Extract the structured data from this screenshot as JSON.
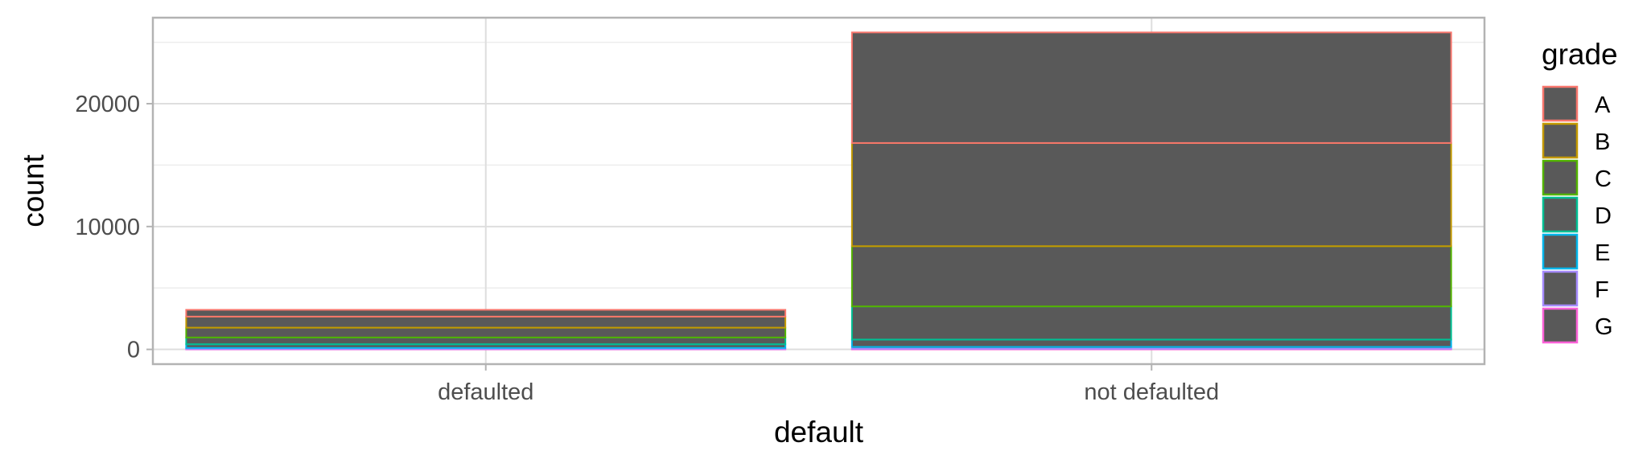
{
  "chart_data": {
    "type": "bar",
    "stacked": true,
    "categories": [
      "defaulted",
      "not defaulted"
    ],
    "xlabel": "default",
    "ylabel": "count",
    "ylim": [
      -1200,
      27000
    ],
    "yticks": [
      0,
      10000,
      20000
    ],
    "ytick_labels": [
      "0",
      "10000",
      "20000"
    ],
    "grid": true,
    "theme": "light",
    "bar_fill": "#595959",
    "legend": {
      "title": "grade",
      "position": "right"
    },
    "series": [
      {
        "name": "A",
        "color": "#F8766D",
        "values": [
          550,
          9000
        ]
      },
      {
        "name": "B",
        "color": "#C49A00",
        "values": [
          900,
          8400
        ]
      },
      {
        "name": "C",
        "color": "#53B400",
        "values": [
          800,
          4900
        ]
      },
      {
        "name": "D",
        "color": "#00C094",
        "values": [
          550,
          2700
        ]
      },
      {
        "name": "E",
        "color": "#00B6EB",
        "values": [
          300,
          600
        ]
      },
      {
        "name": "F",
        "color": "#A58AFF",
        "values": [
          90,
          150
        ]
      },
      {
        "name": "G",
        "color": "#FB61D7",
        "values": [
          30,
          50
        ]
      }
    ]
  }
}
